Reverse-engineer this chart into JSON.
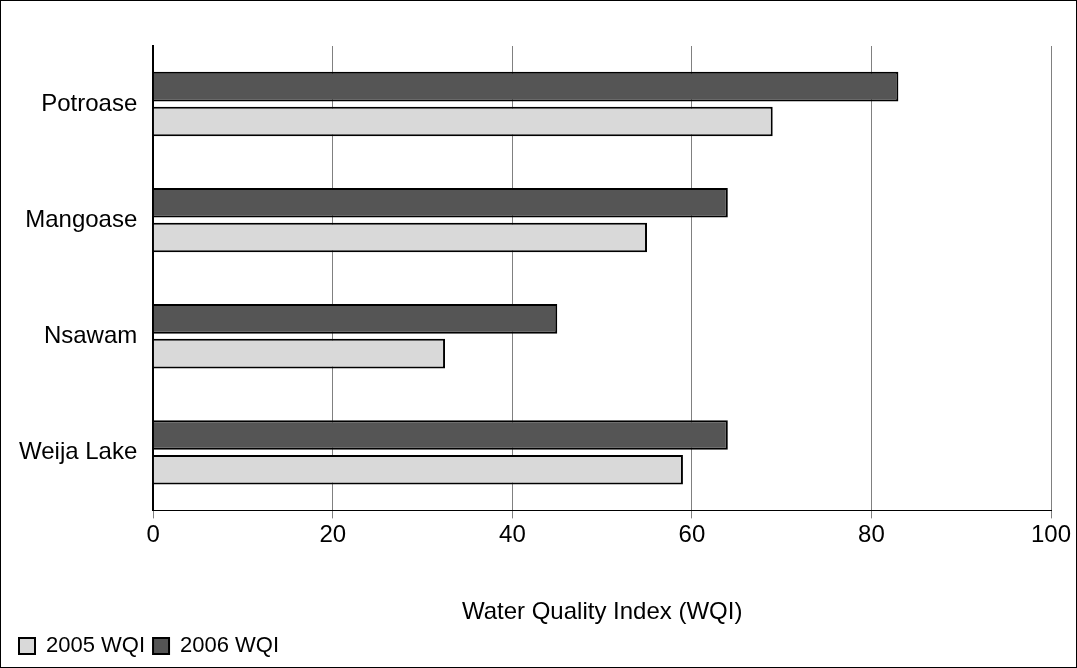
{
  "chart_data": {
    "type": "bar",
    "orientation": "horizontal",
    "categories": [
      "Potroase",
      "Mangoase",
      "Nsawam",
      "Weija Lake"
    ],
    "series": [
      {
        "name": "2005 WQI",
        "color": "#d9d9d9",
        "values": [
          69,
          55,
          32.5,
          59
        ]
      },
      {
        "name": "2006 WQI",
        "color": "#555555",
        "values": [
          83,
          64,
          45,
          64
        ]
      }
    ],
    "xlabel": "Water Quality Index (WQI)",
    "xlim": [
      0,
      100
    ],
    "xticks": [
      0,
      20,
      40,
      60,
      80,
      100
    ],
    "grid": "x",
    "legend": "bottom left"
  }
}
